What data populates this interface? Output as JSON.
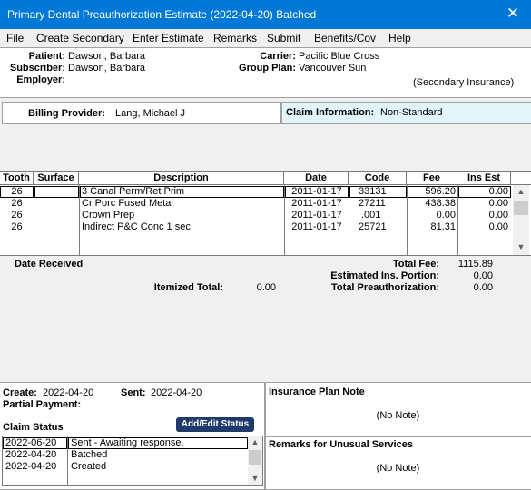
{
  "window": {
    "title": "Primary Dental Preauthorization Estimate (2022-04-20) Batched",
    "close_glyph": "✕"
  },
  "menu": [
    "File",
    "Create Secondary",
    "Enter Estimate",
    "Remarks",
    "Submit",
    "Benefits/Cov",
    "Help"
  ],
  "header": {
    "patient_label": "Patient:",
    "patient": "Dawson, Barbara",
    "subscriber_label": "Subscriber:",
    "subscriber": "Dawson, Barbara",
    "employer_label": "Employer:",
    "employer": "",
    "carrier_label": "Carrier:",
    "carrier": "Pacific Blue Cross",
    "group_plan_label": "Group Plan:",
    "group_plan": "Vancouver Sun",
    "secondary_note": "(Secondary Insurance)"
  },
  "billing": {
    "label": "Billing Provider:",
    "value": "Lang, Michael J"
  },
  "claim_info": {
    "label": "Claim Information:",
    "value": "Non-Standard"
  },
  "grid": {
    "columns": [
      "Tooth",
      "Surface",
      "Description",
      "Date",
      "Code",
      "Fee",
      "Ins Est"
    ],
    "rows": [
      {
        "tooth": "26",
        "surface": "",
        "description": "3 Canal Perm/Ret Prim",
        "date": "2011-01-17",
        "code": "33131",
        "fee": "596.20",
        "ins_est": "0.00"
      },
      {
        "tooth": "26",
        "surface": "",
        "description": "Cr Porc Fused Metal",
        "date": "2011-01-17",
        "code": "27211",
        "fee": "438.38",
        "ins_est": "0.00"
      },
      {
        "tooth": "26",
        "surface": "",
        "description": "Crown Prep",
        "date": "2011-01-17",
        "code": ".001",
        "fee": "0.00",
        "ins_est": "0.00"
      },
      {
        "tooth": "26",
        "surface": "",
        "description": "Indirect P&C Conc 1 sec",
        "date": "2011-01-17",
        "code": "25721",
        "fee": "81.31",
        "ins_est": "0.00"
      }
    ]
  },
  "totals": {
    "date_received_label": "Date Received",
    "itemized_label": "Itemized Total:",
    "itemized": "0.00",
    "total_fee_label": "Total Fee:",
    "total_fee": "1115.89",
    "est_ins_label": "Estimated Ins. Portion:",
    "est_ins": "0.00",
    "total_preauth_label": "Total Preauthorization:",
    "total_preauth": "0.00"
  },
  "claim": {
    "create_label": "Create:",
    "create": "2022-04-20",
    "sent_label": "Sent:",
    "sent": "2022-04-20",
    "partial_label": "Partial Payment:",
    "status_label": "Claim Status",
    "add_edit_button": "Add/Edit Status",
    "status_rows": [
      {
        "date": "2022-06-20",
        "status": "Sent - Awaiting response."
      },
      {
        "date": "2022-04-20",
        "status": "Batched"
      },
      {
        "date": "2022-04-20",
        "status": "Created"
      }
    ]
  },
  "insurance_note": {
    "label": "Insurance Plan Note",
    "value": "(No Note)"
  },
  "remarks_unusual": {
    "label": "Remarks for Unusual Services",
    "value": "(No Note)"
  },
  "colors": {
    "titlebar": "#0078d7",
    "claim_info_bg": "#e1f5fb",
    "status_button": "#1f3b6b"
  }
}
